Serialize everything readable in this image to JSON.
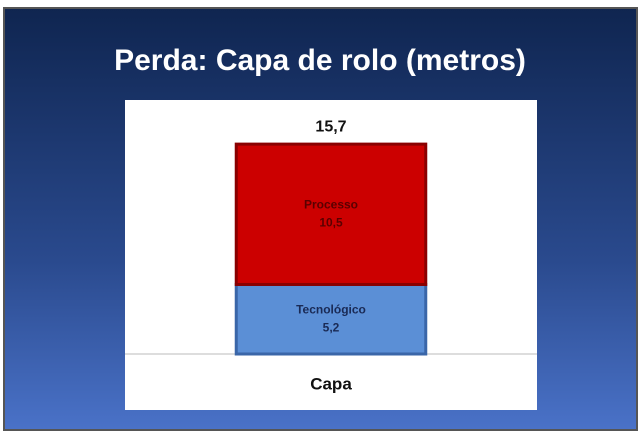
{
  "chart_data": {
    "type": "stacked-bar",
    "title": "Perda: Capa de rolo (metros)",
    "categories": [
      "Capa"
    ],
    "series": [
      {
        "name": "Tecnológico",
        "color": "#5b8fd6",
        "values": [
          5.2
        ],
        "value_labels": [
          "5,2"
        ]
      },
      {
        "name": "Processo",
        "color": "#cc0000",
        "values": [
          10.5
        ],
        "value_labels": [
          "10,5"
        ]
      }
    ],
    "totals": [
      15.7
    ],
    "total_labels": [
      "15,7"
    ],
    "ylim": [
      0,
      19
    ]
  }
}
